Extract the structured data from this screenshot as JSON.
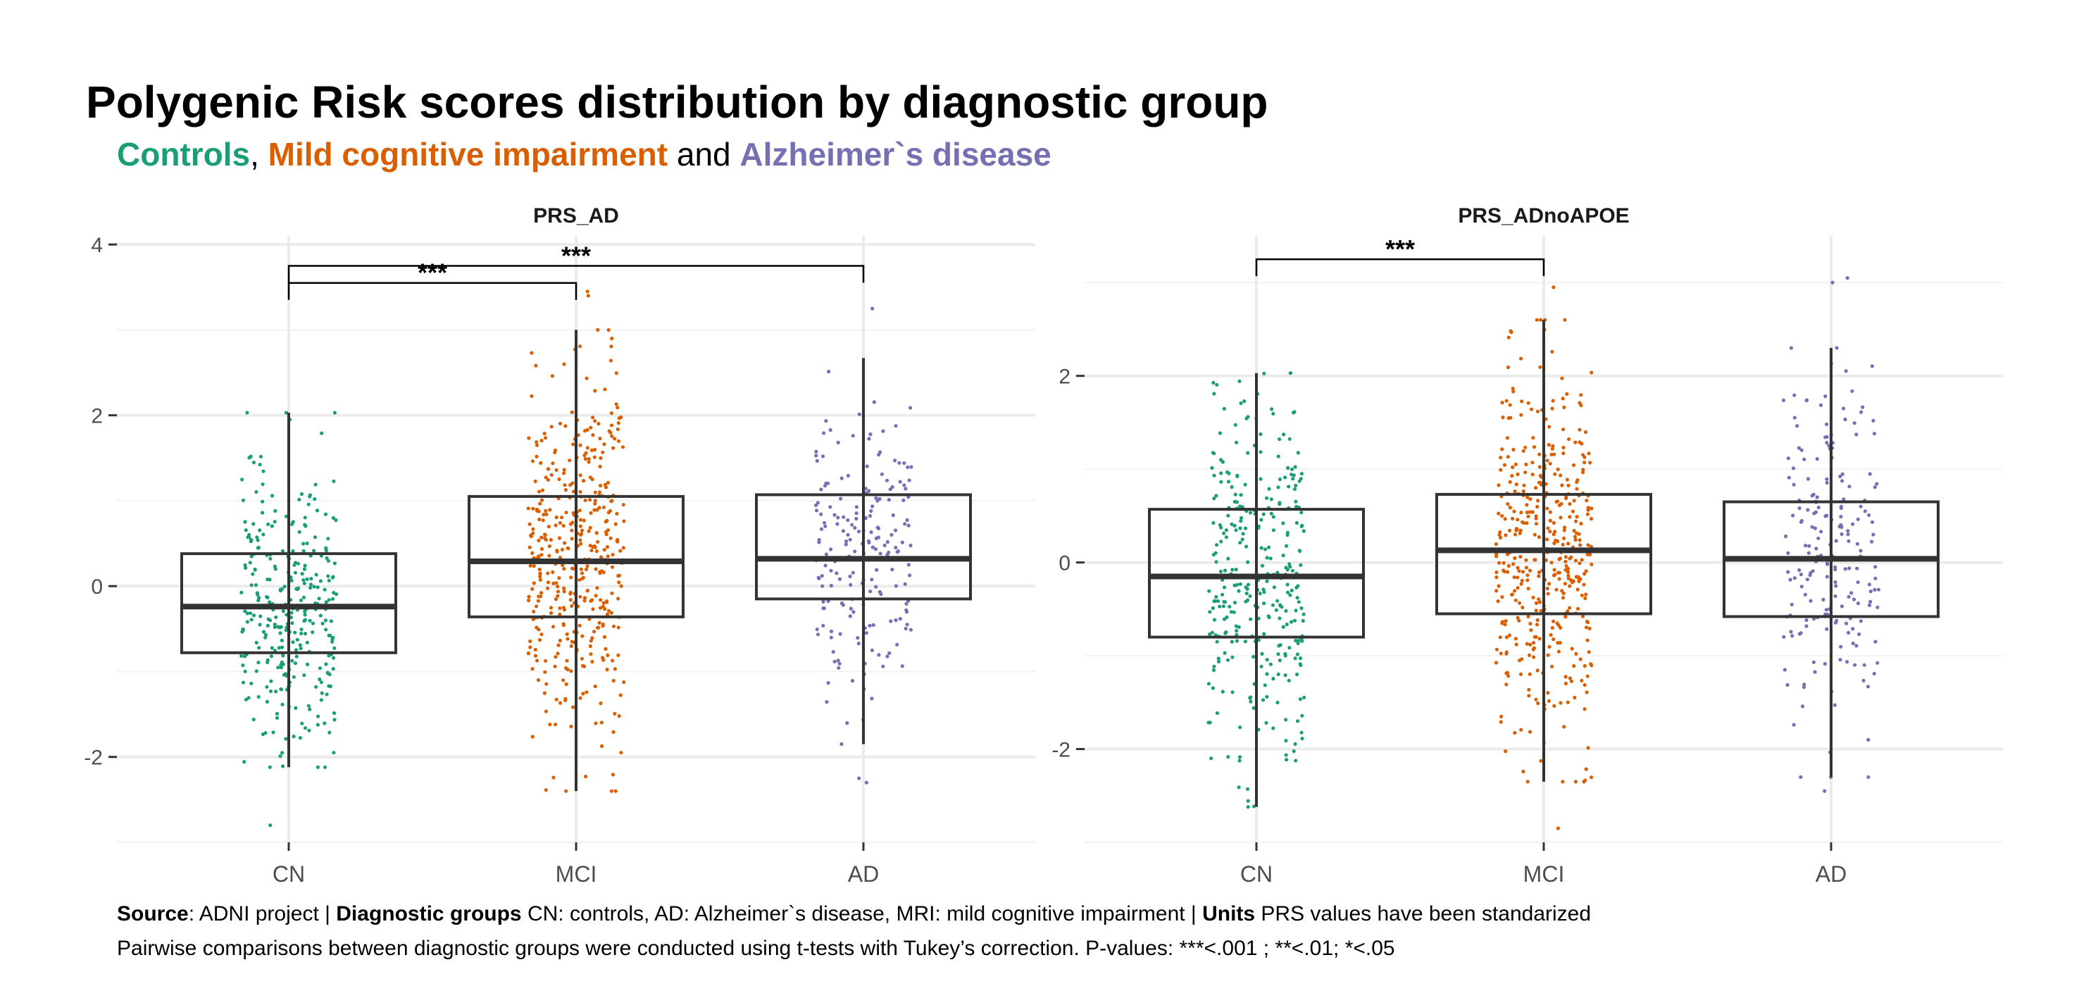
{
  "title": "Polygenic Risk scores distribution by diagnostic group",
  "subtitle": {
    "g1": "Controls",
    "sep1": ",",
    "g2": "Mild cognitive impairment",
    "sep2": "and",
    "g3": "Alzheimer`s disease"
  },
  "colors": {
    "CN": "#1b9e77",
    "MCI": "#d95f02",
    "AD": "#7570b3",
    "grid": "#ebebeb",
    "box": "#333333"
  },
  "footer": {
    "line1": {
      "source_label": "Source",
      "source_text": ": ADNI project |",
      "groups_label": "Diagnostic groups",
      "groups_text": " CN: controls, AD: Alzheimer`s disease, MRI: mild cognitive impairment |",
      "units_label": "Units",
      "units_text": " PRS values have been standarized"
    },
    "line2": "Pairwise comparisons between diagnostic groups were conducted using t-tests with Tukey’s correction. P-values: ***<.001 ; **<.01; *<.05"
  },
  "chart_data": [
    {
      "type": "box",
      "title": "PRS_AD",
      "categories": [
        "CN",
        "MCI",
        "AD"
      ],
      "ylim": [
        -3.0,
        4.1
      ],
      "yticks": [
        -2,
        0,
        2,
        4
      ],
      "ytick_labels": [
        "-2",
        "0",
        "2",
        "4"
      ],
      "grid": true,
      "boxes": [
        {
          "group": "CN",
          "whisker_low": -2.12,
          "q1": -0.78,
          "median": -0.24,
          "q3": 0.38,
          "whisker_high": 2.03,
          "n_points": 320,
          "outliers": [
            -2.8
          ]
        },
        {
          "group": "MCI",
          "whisker_low": -2.4,
          "q1": -0.36,
          "median": 0.29,
          "q3": 1.05,
          "whisker_high": 3.0,
          "n_points": 430,
          "outliers": [
            3.45,
            3.4
          ]
        },
        {
          "group": "AD",
          "whisker_low": -1.85,
          "q1": -0.15,
          "median": 0.32,
          "q3": 1.07,
          "whisker_high": 2.67,
          "n_points": 200,
          "outliers": [
            3.25,
            -2.25,
            -2.3
          ]
        }
      ],
      "comparisons": [
        {
          "groups": [
            "CN",
            "MCI"
          ],
          "label": "***",
          "y": 3.55
        },
        {
          "groups": [
            "CN",
            "AD"
          ],
          "label": "***",
          "y": 3.75
        }
      ]
    },
    {
      "type": "box",
      "title": "PRS_ADnoAPOE",
      "categories": [
        "CN",
        "MCI",
        "AD"
      ],
      "ylim": [
        -3.0,
        3.5
      ],
      "yticks": [
        -2,
        0,
        2
      ],
      "ytick_labels": [
        "-2",
        "0",
        "2"
      ],
      "grid": true,
      "boxes": [
        {
          "group": "CN",
          "whisker_low": -2.62,
          "q1": -0.8,
          "median": -0.15,
          "q3": 0.57,
          "whisker_high": 2.03,
          "n_points": 320,
          "outliers": []
        },
        {
          "group": "MCI",
          "whisker_low": -2.35,
          "q1": -0.55,
          "median": 0.13,
          "q3": 0.73,
          "whisker_high": 2.6,
          "n_points": 430,
          "outliers": [
            2.95,
            -2.85
          ]
        },
        {
          "group": "AD",
          "whisker_low": -2.3,
          "q1": -0.58,
          "median": 0.04,
          "q3": 0.65,
          "whisker_high": 2.3,
          "n_points": 200,
          "outliers": [
            3.05,
            3.0,
            -2.45
          ]
        }
      ],
      "comparisons": [
        {
          "groups": [
            "CN",
            "MCI"
          ],
          "label": "***",
          "y": 3.25
        }
      ]
    }
  ]
}
